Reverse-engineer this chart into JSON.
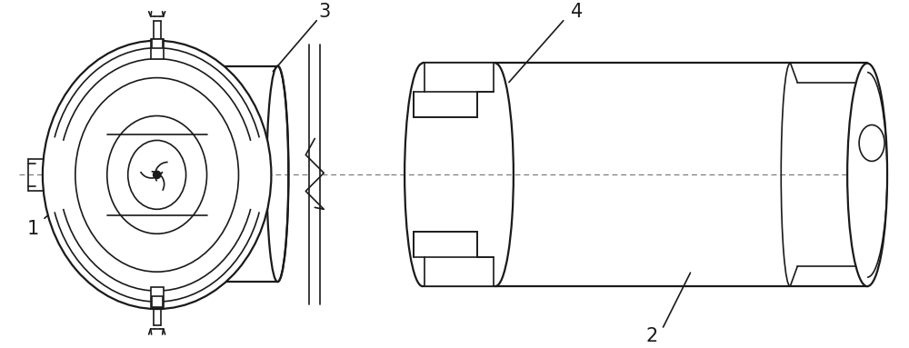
{
  "bg_color": "#ffffff",
  "line_color": "#1a1a1a",
  "lw": 1.2,
  "lw_thick": 1.6,
  "fig_w": 10.0,
  "fig_h": 3.83,
  "dpi": 100
}
